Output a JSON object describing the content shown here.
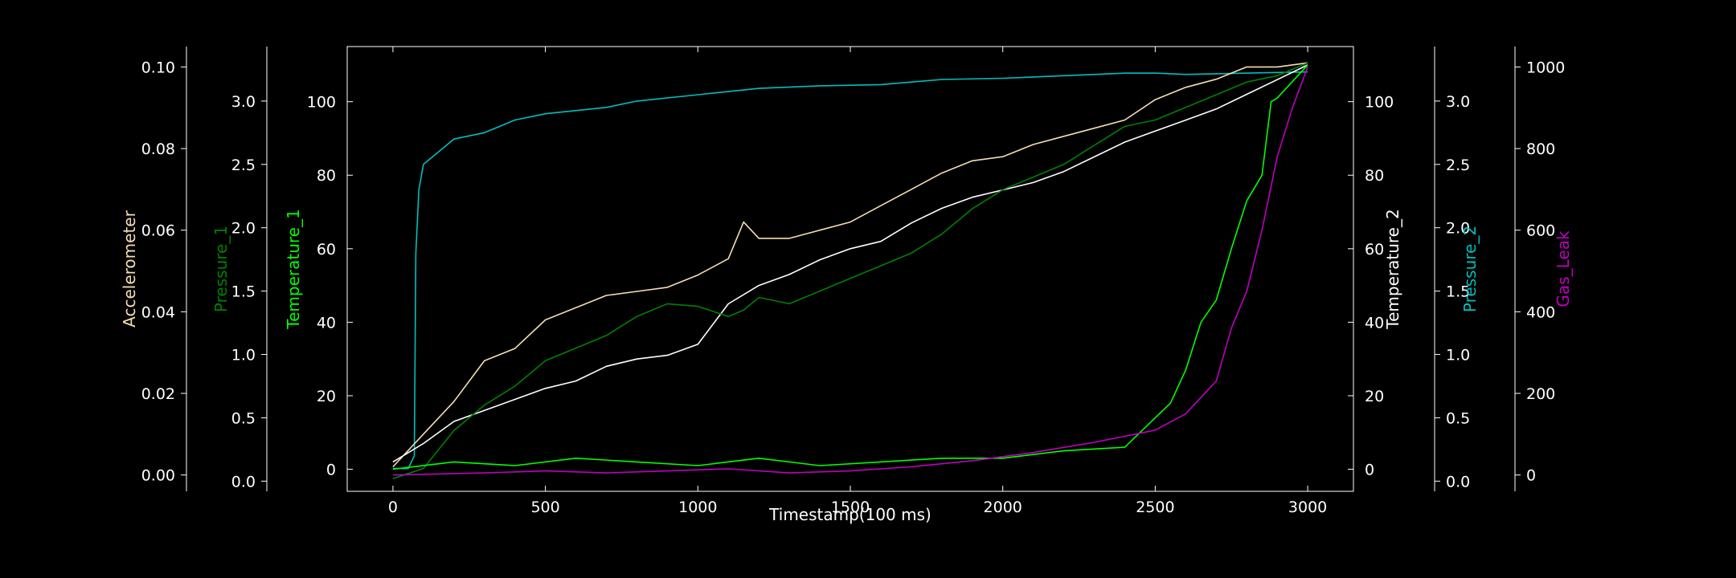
{
  "chart_data": {
    "type": "line",
    "x": {
      "label": "Timestamp(100 ms)",
      "range": [
        -150,
        3150
      ],
      "ticks": [
        0,
        500,
        1000,
        1500,
        2000,
        2500,
        3000
      ]
    },
    "axes": {
      "accelerometer": {
        "label": "Accelerometer",
        "color": "#f5deb3",
        "range": [
          -0.004,
          0.105
        ],
        "ticks": [
          0.0,
          0.02,
          0.04,
          0.06,
          0.08,
          0.1
        ],
        "tick_labels": [
          "0.00",
          "0.02",
          "0.04",
          "0.06",
          "0.08",
          "0.10"
        ]
      },
      "pressure_1": {
        "label": "Pressure_1",
        "color": "#008000",
        "range": [
          -0.08,
          3.43
        ],
        "ticks": [
          0.0,
          0.5,
          1.0,
          1.5,
          2.0,
          2.5,
          3.0
        ],
        "tick_labels": [
          "0.0",
          "0.5",
          "1.0",
          "1.5",
          "2.0",
          "2.5",
          "3.0"
        ]
      },
      "temperature_1": {
        "label": "Temperature_1",
        "color": "#00ff00",
        "range": [
          -6,
          115
        ],
        "ticks": [
          0,
          20,
          40,
          60,
          80,
          100
        ],
        "tick_labels": [
          "0",
          "20",
          "40",
          "60",
          "80",
          "100"
        ]
      },
      "temperature_2": {
        "label": "Temperature_2",
        "color": "#ffffff",
        "range": [
          -6,
          115
        ],
        "ticks": [
          0,
          20,
          40,
          60,
          80,
          100
        ],
        "tick_labels": [
          "0",
          "20",
          "40",
          "60",
          "80",
          "100"
        ]
      },
      "pressure_2": {
        "label": "Pressure_2",
        "color": "#00bfbf",
        "range": [
          -0.08,
          3.43
        ],
        "ticks": [
          0.0,
          0.5,
          1.0,
          1.5,
          2.0,
          2.5,
          3.0
        ],
        "tick_labels": [
          "0.0",
          "0.5",
          "1.0",
          "1.5",
          "2.0",
          "2.5",
          "3.0"
        ]
      },
      "gas_leak": {
        "label": "Gas_Leak",
        "color": "#bf00bf",
        "range": [
          -40,
          1050
        ],
        "ticks": [
          0,
          200,
          400,
          600,
          800,
          1000
        ],
        "tick_labels": [
          "0",
          "200",
          "400",
          "600",
          "800",
          "1000"
        ]
      }
    },
    "series": [
      {
        "axis": "pressure_2",
        "color": "#00bfbf",
        "x": [
          0,
          50,
          70,
          75,
          85,
          100,
          150,
          200,
          300,
          400,
          500,
          700,
          800,
          1000,
          1200,
          1400,
          1600,
          1800,
          2000,
          2200,
          2400,
          2500,
          2600,
          2800,
          3000
        ],
        "y": [
          0.1,
          0.1,
          0.2,
          1.8,
          2.3,
          2.5,
          2.6,
          2.7,
          2.75,
          2.85,
          2.9,
          2.95,
          3.0,
          3.05,
          3.1,
          3.12,
          3.13,
          3.17,
          3.18,
          3.2,
          3.22,
          3.22,
          3.21,
          3.22,
          3.23
        ]
      },
      {
        "axis": "accelerometer",
        "color": "#f5deb3",
        "x": [
          0,
          100,
          200,
          300,
          400,
          500,
          600,
          700,
          800,
          900,
          1000,
          1100,
          1150,
          1200,
          1300,
          1400,
          1500,
          1600,
          1700,
          1800,
          1900,
          2000,
          2100,
          2200,
          2300,
          2400,
          2500,
          2600,
          2700,
          2800,
          2900,
          3000
        ],
        "y": [
          0.002,
          0.01,
          0.018,
          0.028,
          0.031,
          0.038,
          0.041,
          0.044,
          0.045,
          0.046,
          0.049,
          0.053,
          0.062,
          0.058,
          0.058,
          0.06,
          0.062,
          0.066,
          0.07,
          0.074,
          0.077,
          0.078,
          0.081,
          0.083,
          0.085,
          0.087,
          0.092,
          0.095,
          0.097,
          0.1,
          0.1,
          0.101
        ]
      },
      {
        "axis": "temperature_2",
        "color": "#ffffff",
        "x": [
          0,
          100,
          200,
          300,
          400,
          500,
          600,
          700,
          800,
          900,
          1000,
          1100,
          1200,
          1300,
          1400,
          1500,
          1600,
          1700,
          1800,
          1900,
          2000,
          2100,
          2200,
          2300,
          2400,
          2500,
          2600,
          2700,
          2800,
          2900,
          3000
        ],
        "y": [
          2,
          7,
          13,
          16,
          19,
          22,
          24,
          28,
          30,
          31,
          34,
          45,
          50,
          53,
          57,
          60,
          62,
          67,
          71,
          74,
          76,
          78,
          81,
          85,
          89,
          92,
          95,
          98,
          102,
          106,
          110
        ]
      },
      {
        "axis": "pressure_1",
        "color": "#008000",
        "x": [
          0,
          100,
          200,
          300,
          400,
          500,
          600,
          700,
          800,
          900,
          1000,
          1100,
          1150,
          1200,
          1300,
          1400,
          1500,
          1600,
          1700,
          1800,
          1900,
          2000,
          2100,
          2200,
          2300,
          2400,
          2500,
          2600,
          2700,
          2800,
          2900,
          3000
        ],
        "y": [
          0.02,
          0.1,
          0.4,
          0.6,
          0.75,
          0.95,
          1.05,
          1.15,
          1.3,
          1.4,
          1.38,
          1.3,
          1.35,
          1.45,
          1.4,
          1.5,
          1.6,
          1.7,
          1.8,
          1.95,
          2.15,
          2.3,
          2.4,
          2.5,
          2.65,
          2.8,
          2.85,
          2.95,
          3.05,
          3.15,
          3.2,
          3.3
        ]
      },
      {
        "axis": "temperature_1",
        "color": "#00ff00",
        "x": [
          0,
          200,
          400,
          600,
          800,
          1000,
          1200,
          1400,
          1600,
          1800,
          2000,
          2200,
          2400,
          2500,
          2550,
          2600,
          2650,
          2700,
          2750,
          2800,
          2850,
          2880,
          2900,
          3000
        ],
        "y": [
          0,
          2,
          1,
          3,
          2,
          1,
          3,
          1,
          2,
          3,
          3,
          5,
          6,
          14,
          18,
          27,
          40,
          46,
          60,
          73,
          80,
          100,
          101,
          110
        ]
      },
      {
        "axis": "gas_leak",
        "color": "#bf00bf",
        "x": [
          0,
          300,
          500,
          700,
          900,
          1100,
          1300,
          1500,
          1700,
          1900,
          2100,
          2300,
          2500,
          2600,
          2700,
          2750,
          2800,
          2850,
          2900,
          2950,
          3000
        ],
        "y": [
          0,
          5,
          10,
          5,
          10,
          15,
          5,
          10,
          20,
          35,
          55,
          80,
          110,
          150,
          230,
          360,
          450,
          600,
          780,
          900,
          1000
        ]
      }
    ]
  }
}
